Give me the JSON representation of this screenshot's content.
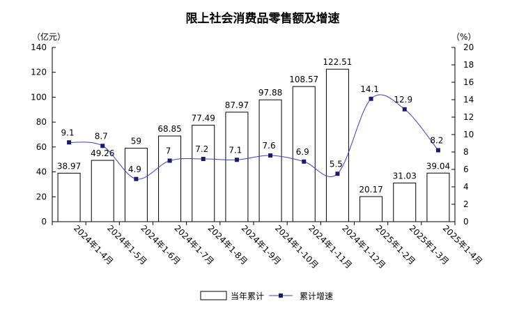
{
  "chart_data": {
    "type": "bar",
    "title": "限上社会消费品零售额及增速",
    "left_axis_unit": "（亿元）",
    "right_axis_unit": "（%）",
    "categories": [
      "2024年1-4月",
      "2024年1-5月",
      "2024年1-6月",
      "2024年1-7月",
      "2024年1-8月",
      "2024年1-9月",
      "2024年1-10月",
      "2024年1-11月",
      "2024年1-12月",
      "2025年1-2月",
      "2025年1-3月",
      "2025年1-4月"
    ],
    "series": [
      {
        "name": "当年累计",
        "type": "bar",
        "axis": "left",
        "values": [
          38.97,
          49.26,
          59,
          68.85,
          77.49,
          87.97,
          97.88,
          108.57,
          122.51,
          20.17,
          31.03,
          39.04
        ],
        "labels": [
          "38.97",
          "49.26",
          "59",
          "68.85",
          "77.49",
          "87.97",
          "97.88",
          "108.57",
          "122.51",
          "20.17",
          "31.03",
          "39.04"
        ]
      },
      {
        "name": "累计增速",
        "type": "line",
        "axis": "right",
        "values": [
          9.1,
          8.7,
          4.9,
          7,
          7.2,
          7.1,
          7.6,
          6.9,
          5.5,
          14.1,
          12.9,
          8.2
        ],
        "labels": [
          "9.1",
          "8.7",
          "4.9",
          "7",
          "7.2",
          "7.1",
          "7.6",
          "6.9",
          "5.5",
          "14.1",
          "12.9",
          "8.2"
        ]
      }
    ],
    "ylim_left": [
      0,
      140
    ],
    "yticks_left": [
      "0",
      "20",
      "40",
      "60",
      "80",
      "100",
      "120",
      "140"
    ],
    "ylim_right": [
      0,
      20
    ],
    "yticks_right": [
      "0",
      "2",
      "4",
      "6",
      "8",
      "10",
      "12",
      "14",
      "16",
      "18",
      "20"
    ],
    "grid": false,
    "legend": "bottom",
    "colors": {
      "bar_fill": "#ffffff",
      "bar_stroke": "#000000",
      "line": "#3a3fc4",
      "marker": "#1a1a6e"
    }
  }
}
